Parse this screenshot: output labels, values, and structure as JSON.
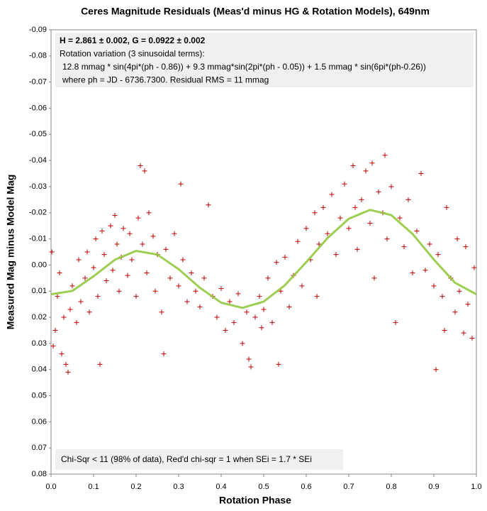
{
  "chart_data": {
    "type": "scatter",
    "title": "Ceres Magnitude Residuals (Meas'd minus HG & Rotation Models), 649nm",
    "x_label": "Rotation Phase",
    "y_label": "Measured Mag minus Model Mag",
    "xlim": [
      0,
      1
    ],
    "ylim": [
      -0.09,
      0.08
    ],
    "y_inverted": true,
    "grid": false,
    "xticks": [
      {
        "value": 0,
        "label": "0.0"
      },
      0.1,
      0.2,
      0.3,
      0.4,
      0.5,
      0.6,
      0.7,
      0.8,
      0.9,
      {
        "value": 1,
        "label": "1.0"
      }
    ],
    "yticks": [
      -0.09,
      -0.08,
      -0.07,
      -0.06,
      -0.05,
      -0.04,
      -0.03,
      -0.02,
      -0.01,
      {
        "value": 0,
        "label": "0.00"
      },
      0.01,
      0.02,
      0.03,
      0.04,
      0.05,
      0.06,
      0.07,
      0.08
    ],
    "annotations": {
      "top": [
        "H = 2.861 ± 0.002, G = 0.0922 ± 0.002",
        "Rotation variation (3 sinusoidal  terms):",
        "12.8 mmag * sin(4pi*(ph  - 0.86)) + 9.3 mmag*sin(2pi*(ph  - 0.05)) + 1.5 mmag * sin(6pi*(ph-0.26))",
        "where ph = JD - 6736.7300. Residual RMS = 11 mmag"
      ],
      "bottom": "Chi-Sqr  < 11 (98% of data), Red'd chi-sqr = 1 when SEi = 1.7 * SEi"
    },
    "series": [
      {
        "mode": "markers",
        "color": "#c00000",
        "x": [
          0.002,
          0.005,
          0.01,
          0.015,
          0.02,
          0.025,
          0.03,
          0.035,
          0.04,
          0.045,
          0.05,
          0.06,
          0.065,
          0.07,
          0.08,
          0.085,
          0.09,
          0.1,
          0.105,
          0.11,
          0.115,
          0.12,
          0.125,
          0.13,
          0.14,
          0.145,
          0.15,
          0.155,
          0.16,
          0.165,
          0.17,
          0.18,
          0.185,
          0.19,
          0.2,
          0.205,
          0.21,
          0.215,
          0.22,
          0.225,
          0.23,
          0.24,
          0.245,
          0.25,
          0.26,
          0.265,
          0.27,
          0.28,
          0.29,
          0.3,
          0.305,
          0.31,
          0.32,
          0.33,
          0.34,
          0.35,
          0.36,
          0.37,
          0.38,
          0.39,
          0.4,
          0.41,
          0.42,
          0.43,
          0.44,
          0.45,
          0.46,
          0.465,
          0.47,
          0.48,
          0.49,
          0.495,
          0.5,
          0.51,
          0.52,
          0.53,
          0.535,
          0.54,
          0.55,
          0.56,
          0.57,
          0.58,
          0.59,
          0.6,
          0.61,
          0.62,
          0.625,
          0.63,
          0.64,
          0.65,
          0.66,
          0.67,
          0.68,
          0.69,
          0.7,
          0.71,
          0.715,
          0.72,
          0.73,
          0.74,
          0.75,
          0.755,
          0.76,
          0.77,
          0.78,
          0.785,
          0.79,
          0.8,
          0.81,
          0.82,
          0.83,
          0.84,
          0.85,
          0.86,
          0.87,
          0.88,
          0.89,
          0.9,
          0.905,
          0.91,
          0.92,
          0.925,
          0.93,
          0.94,
          0.95,
          0.955,
          0.96,
          0.97,
          0.975,
          0.98,
          0.99,
          0.995
        ],
        "values": [
          -0.005,
          0.031,
          0.025,
          0.012,
          0.003,
          0.034,
          0.02,
          0.038,
          0.041,
          0.017,
          0.008,
          0.022,
          -0.002,
          0.014,
          0.005,
          -0.005,
          0.018,
          0.001,
          -0.01,
          0.012,
          0.038,
          -0.013,
          -0.004,
          0.006,
          -0.015,
          0.002,
          -0.019,
          -0.008,
          0.01,
          -0.003,
          -0.014,
          0.004,
          -0.012,
          -0.002,
          0.012,
          -0.018,
          -0.038,
          -0.008,
          -0.036,
          0.003,
          -0.02,
          -0.011,
          0.01,
          -0.004,
          0.018,
          0.034,
          -0.006,
          0.005,
          -0.012,
          0.008,
          -0.031,
          -0.002,
          0.014,
          0.003,
          0.01,
          0.016,
          0.005,
          -0.023,
          0.012,
          0.02,
          0.009,
          0.025,
          0.014,
          0.022,
          0.011,
          0.03,
          0.018,
          0.036,
          0.039,
          0.02,
          0.012,
          0.024,
          0.017,
          0.005,
          0.022,
          -0.001,
          0.038,
          0.01,
          -0.003,
          0.016,
          0.004,
          -0.009,
          0.008,
          -0.014,
          -0.002,
          -0.02,
          0.012,
          -0.008,
          -0.022,
          -0.012,
          -0.027,
          -0.004,
          -0.018,
          -0.031,
          -0.014,
          -0.038,
          -0.022,
          -0.006,
          -0.025,
          -0.036,
          -0.016,
          -0.039,
          0.005,
          -0.028,
          -0.02,
          -0.042,
          -0.01,
          -0.03,
          0.022,
          -0.018,
          -0.007,
          -0.025,
          0.003,
          -0.013,
          -0.035,
          0.002,
          -0.008,
          0.008,
          0.04,
          -0.004,
          0.012,
          0.025,
          -0.022,
          0.005,
          0.018,
          -0.01,
          0.01,
          0.026,
          -0.007,
          0.015,
          0.028,
          0.001
        ]
      },
      {
        "mode": "line",
        "color": "#92c83e",
        "x": [
          0,
          0.05,
          0.1,
          0.15,
          0.2,
          0.25,
          0.3,
          0.35,
          0.4,
          0.45,
          0.5,
          0.55,
          0.6,
          0.65,
          0.7,
          0.75,
          0.8,
          0.85,
          0.9,
          0.95,
          1
        ],
        "values": [
          0.0112,
          0.0099,
          0.0043,
          -0.002,
          -0.0054,
          -0.004,
          0.0016,
          0.0087,
          0.0144,
          0.0164,
          0.014,
          0.0077,
          -0.0011,
          -0.0103,
          -0.0177,
          -0.0211,
          -0.0191,
          -0.0119,
          -0.0021,
          0.0068,
          0.0112
        ]
      }
    ]
  }
}
